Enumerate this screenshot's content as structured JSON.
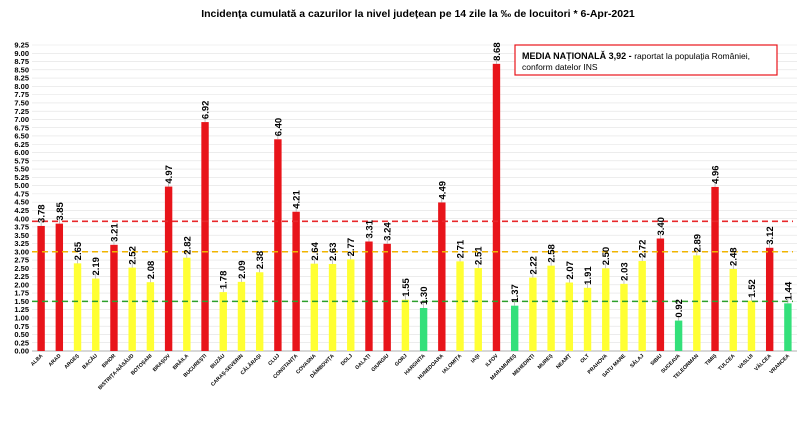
{
  "chart_data": {
    "type": "bar",
    "title": "Incidența cumulată a cazurilor la nivel județean pe 14 zile la ‰ de locuitori *   6-Apr-2021",
    "categories": [
      "ALBA",
      "ARAD",
      "ARGEȘ",
      "BACĂU",
      "BIHOR",
      "BISTRIȚA-NĂSĂUD",
      "BOTOȘANI",
      "BRAȘOV",
      "BRĂILA",
      "BUCUREȘTI",
      "BUZĂU",
      "CARAȘ-SEVERIN",
      "CĂLĂRAȘI",
      "CLUJ",
      "CONSTANȚA",
      "COVASNA",
      "DÂMBOVIȚA",
      "DOLJ",
      "GALAȚI",
      "GIURGIU",
      "GORJ",
      "HARGHITA",
      "HUNEDOARA",
      "IALOMIȚA",
      "IAȘI",
      "ILFOV",
      "MARAMUREȘ",
      "MEHEDINȚI",
      "MUREȘ",
      "NEAMȚ",
      "OLT",
      "PRAHOVA",
      "SATU MARE",
      "SĂLAJ",
      "SIBIU",
      "SUCEAVA",
      "TELEORMAN",
      "TIMIȘ",
      "TULCEA",
      "VASLUI",
      "VÂLCEA",
      "VRANCEA"
    ],
    "values": [
      3.78,
      3.85,
      2.65,
      2.19,
      3.21,
      2.52,
      2.08,
      4.97,
      2.82,
      6.92,
      1.78,
      2.09,
      2.38,
      6.4,
      4.21,
      2.64,
      2.63,
      2.77,
      3.31,
      3.24,
      1.55,
      1.3,
      4.49,
      2.71,
      2.51,
      8.68,
      1.37,
      2.22,
      2.58,
      2.07,
      1.91,
      2.5,
      2.03,
      2.72,
      3.4,
      0.92,
      2.89,
      4.96,
      2.48,
      1.52,
      3.12,
      1.44
    ],
    "value_labels": [
      "3.78",
      "3.85",
      "2.65",
      "2.19",
      "3.21",
      "2.52",
      "2.08",
      "4.97",
      "2.82",
      "6.92",
      "1.78",
      "2.09",
      "2.38",
      "6.40",
      "4.21",
      "2.64",
      "2.63",
      "2.77",
      "3.31",
      "3.24",
      "1.55",
      "1.30",
      "4.49",
      "2.71",
      "2.51",
      "8.68",
      "1.37",
      "2.22",
      "2.58",
      "2.07",
      "1.91",
      "2.50",
      "2.03",
      "2.72",
      "3.40",
      "0.92",
      "2.89",
      "4.96",
      "2.48",
      "1.52",
      "3.12",
      "1.44"
    ],
    "ylim": [
      0,
      9.25
    ],
    "ytick_step": 0.25,
    "threshold_lines": [
      {
        "value": 3.0,
        "color": "#f0b400"
      },
      {
        "value": 1.5,
        "color": "#2ca02c"
      }
    ],
    "national_average_line": {
      "color": "#e8282b"
    },
    "colors": {
      "above_3": "#e8141a",
      "between_1_5_and_3": "#ffff33",
      "below_1_5": "#33e07a",
      "national_box_border": "#e8141a"
    },
    "annotation": {
      "bold": "MEDIA NAȚIONALĂ  3,92 - ",
      "text": "raportat la populația României,",
      "text2": "conform datelor INS"
    }
  }
}
